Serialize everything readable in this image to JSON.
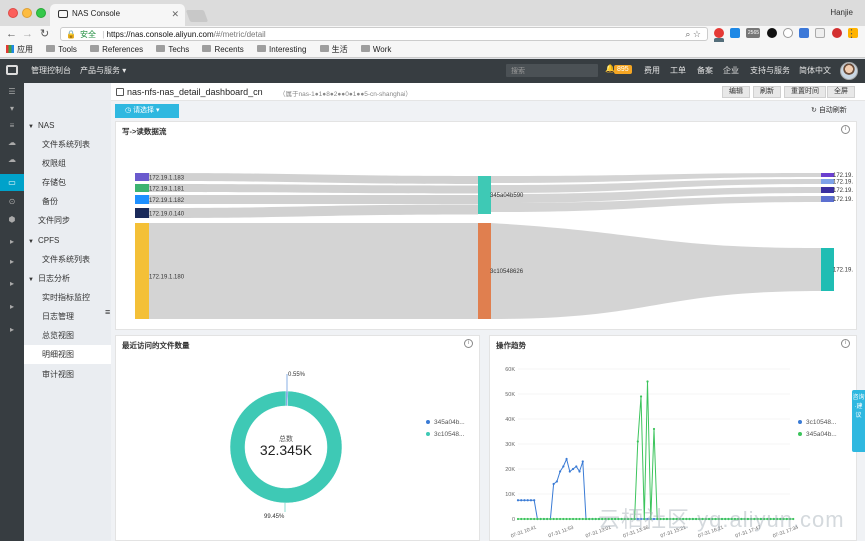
{
  "browser": {
    "tab_title": "NAS Console",
    "user": "Hanjie",
    "secure_label": "安全",
    "url_host": "https://nas.console.aliyun.com",
    "url_path": "/#/metric/detail",
    "extension_badge": "2565",
    "bookmarks": [
      {
        "label": "应用",
        "icon": "apps-icon"
      },
      {
        "label": "Tools",
        "icon": "folder-icon"
      },
      {
        "label": "References",
        "icon": "folder-icon"
      },
      {
        "label": "Techs",
        "icon": "folder-icon"
      },
      {
        "label": "Recents",
        "icon": "folder-icon"
      },
      {
        "label": "Interesting",
        "icon": "folder-icon"
      },
      {
        "label": "生活",
        "icon": "folder-icon"
      },
      {
        "label": "Work",
        "icon": "folder-icon"
      }
    ]
  },
  "topbar": {
    "console_home": "管理控制台",
    "products": "产品与服务 ▾",
    "search_placeholder": "搜索",
    "notifications": "895",
    "items": [
      "费用",
      "工单",
      "备案",
      "企业",
      "支持与服务",
      "简体中文"
    ]
  },
  "sidebar": {
    "items": [
      {
        "label": "NAS",
        "type": "group"
      },
      {
        "label": "文件系统列表",
        "type": "child"
      },
      {
        "label": "权限组",
        "type": "child"
      },
      {
        "label": "存储包",
        "type": "child"
      },
      {
        "label": "备份",
        "type": "child"
      },
      {
        "label": "文件同步",
        "type": "plain"
      },
      {
        "label": "CPFS",
        "type": "group"
      },
      {
        "label": "文件系统列表",
        "type": "child"
      },
      {
        "label": "日志分析",
        "type": "group"
      },
      {
        "label": "实时指标监控",
        "type": "child"
      },
      {
        "label": "日志管理",
        "type": "child"
      },
      {
        "label": "总览视图",
        "type": "child"
      },
      {
        "label": "明细视图",
        "type": "child",
        "selected": true
      },
      {
        "label": "审计视图",
        "type": "child"
      }
    ]
  },
  "header": {
    "title": "nas-nfs-nas_detail_dashboard_cn",
    "subtitle": "（属于nas-1●1●8●2●●0●1●●5-cn-shanghai）",
    "buttons": [
      "编辑",
      "刷新",
      "重置时间",
      "全屏"
    ],
    "select_label": "请选择",
    "auto_refresh": "自动刷新"
  },
  "panels": {
    "sankey_title": "写->读数据流",
    "donut_title": "最近访问的文件数量",
    "trend_title": "操作趋势"
  },
  "right_tab": "咨询·建议",
  "watermark": "云栖社区 yq.aliyun.com",
  "chart_data": [
    {
      "type": "sankey",
      "title": "写->读数据流",
      "sources": [
        {
          "name": "172.19.1.183",
          "color": "#6a5acd"
        },
        {
          "name": "172.19.1.181",
          "color": "#3cb371"
        },
        {
          "name": "172.19.1.182",
          "color": "#1e90ff"
        },
        {
          "name": "172.19.0.140",
          "color": "#1a2a5a"
        },
        {
          "name": "172.19.1.180",
          "color": "#f4c037"
        }
      ],
      "middle": [
        {
          "name": "345a04b590",
          "color": "#3ec9b5"
        },
        {
          "name": "3c10548626",
          "color": "#e07f4f"
        }
      ],
      "targets": [
        {
          "name": "172.19.",
          "color": "#6a3fcf"
        },
        {
          "name": "172.19.",
          "color": "#7ea2e8"
        },
        {
          "name": "172.19.",
          "color": "#3a2fa0"
        },
        {
          "name": "172.19.",
          "color": "#5c6fd0"
        },
        {
          "name": "172.19.",
          "color": "#1fbdb3"
        }
      ]
    },
    {
      "type": "pie",
      "title": "最近访问的文件数量",
      "center_label": "总数",
      "center_value": "32.345K",
      "slices": [
        {
          "name": "345a04b...",
          "percent": 0.55,
          "label": "0.55%",
          "color": "#3a7bd5"
        },
        {
          "name": "3c10548...",
          "percent": 99.45,
          "label": "99.45%",
          "color": "#3ec9b5"
        }
      ]
    },
    {
      "type": "line",
      "title": "操作趋势",
      "ylim": [
        0,
        60000
      ],
      "yticks": [
        "0",
        "10K",
        "20K",
        "30K",
        "40K",
        "50K",
        "60K"
      ],
      "xticks": [
        "07-31 10:41",
        "07-31 11:53",
        "07-31 13:01",
        "07-31 13:36",
        "07-31 15:21",
        "07-31 16:21",
        "07-31 17:47",
        "07-31 17:34"
      ],
      "series": [
        {
          "name": "3c10548...",
          "color": "#3a7bd5",
          "values": [
            7500,
            7500,
            7500,
            7500,
            7500,
            7500,
            0,
            0,
            0,
            0,
            0,
            14000,
            15000,
            19000,
            21000,
            24000,
            19000,
            20000,
            21000,
            19000,
            23000,
            0,
            0,
            0,
            0,
            0,
            0,
            0,
            0,
            0,
            0,
            0,
            0,
            0,
            0,
            0,
            0,
            0,
            0,
            0,
            0,
            0,
            0,
            0,
            0,
            0,
            0,
            0,
            0,
            0,
            0,
            0,
            0,
            0,
            0,
            0,
            0,
            0,
            0,
            0,
            0,
            0,
            0,
            0,
            0,
            0,
            0,
            0,
            0,
            0,
            0,
            0,
            0,
            0,
            0,
            0,
            0,
            0,
            0,
            0,
            0,
            0,
            0,
            0,
            0
          ]
        },
        {
          "name": "345a04b...",
          "color": "#3cc45c",
          "values": [
            0,
            0,
            0,
            0,
            0,
            0,
            0,
            0,
            0,
            0,
            0,
            0,
            0,
            0,
            0,
            0,
            0,
            0,
            0,
            0,
            0,
            0,
            0,
            0,
            0,
            0,
            0,
            0,
            0,
            0,
            0,
            0,
            0,
            0,
            0,
            0,
            0,
            31000,
            49000,
            0,
            55000,
            0,
            36000,
            0,
            0,
            0,
            0,
            0,
            0,
            0,
            0,
            0,
            0,
            0,
            0,
            0,
            0,
            0,
            0,
            0,
            0,
            0,
            0,
            0,
            0,
            0,
            0,
            0,
            0,
            0,
            0,
            0,
            0,
            0,
            0,
            0,
            0,
            0,
            0,
            0,
            0,
            0,
            0,
            0,
            0,
            0
          ]
        }
      ]
    }
  ]
}
